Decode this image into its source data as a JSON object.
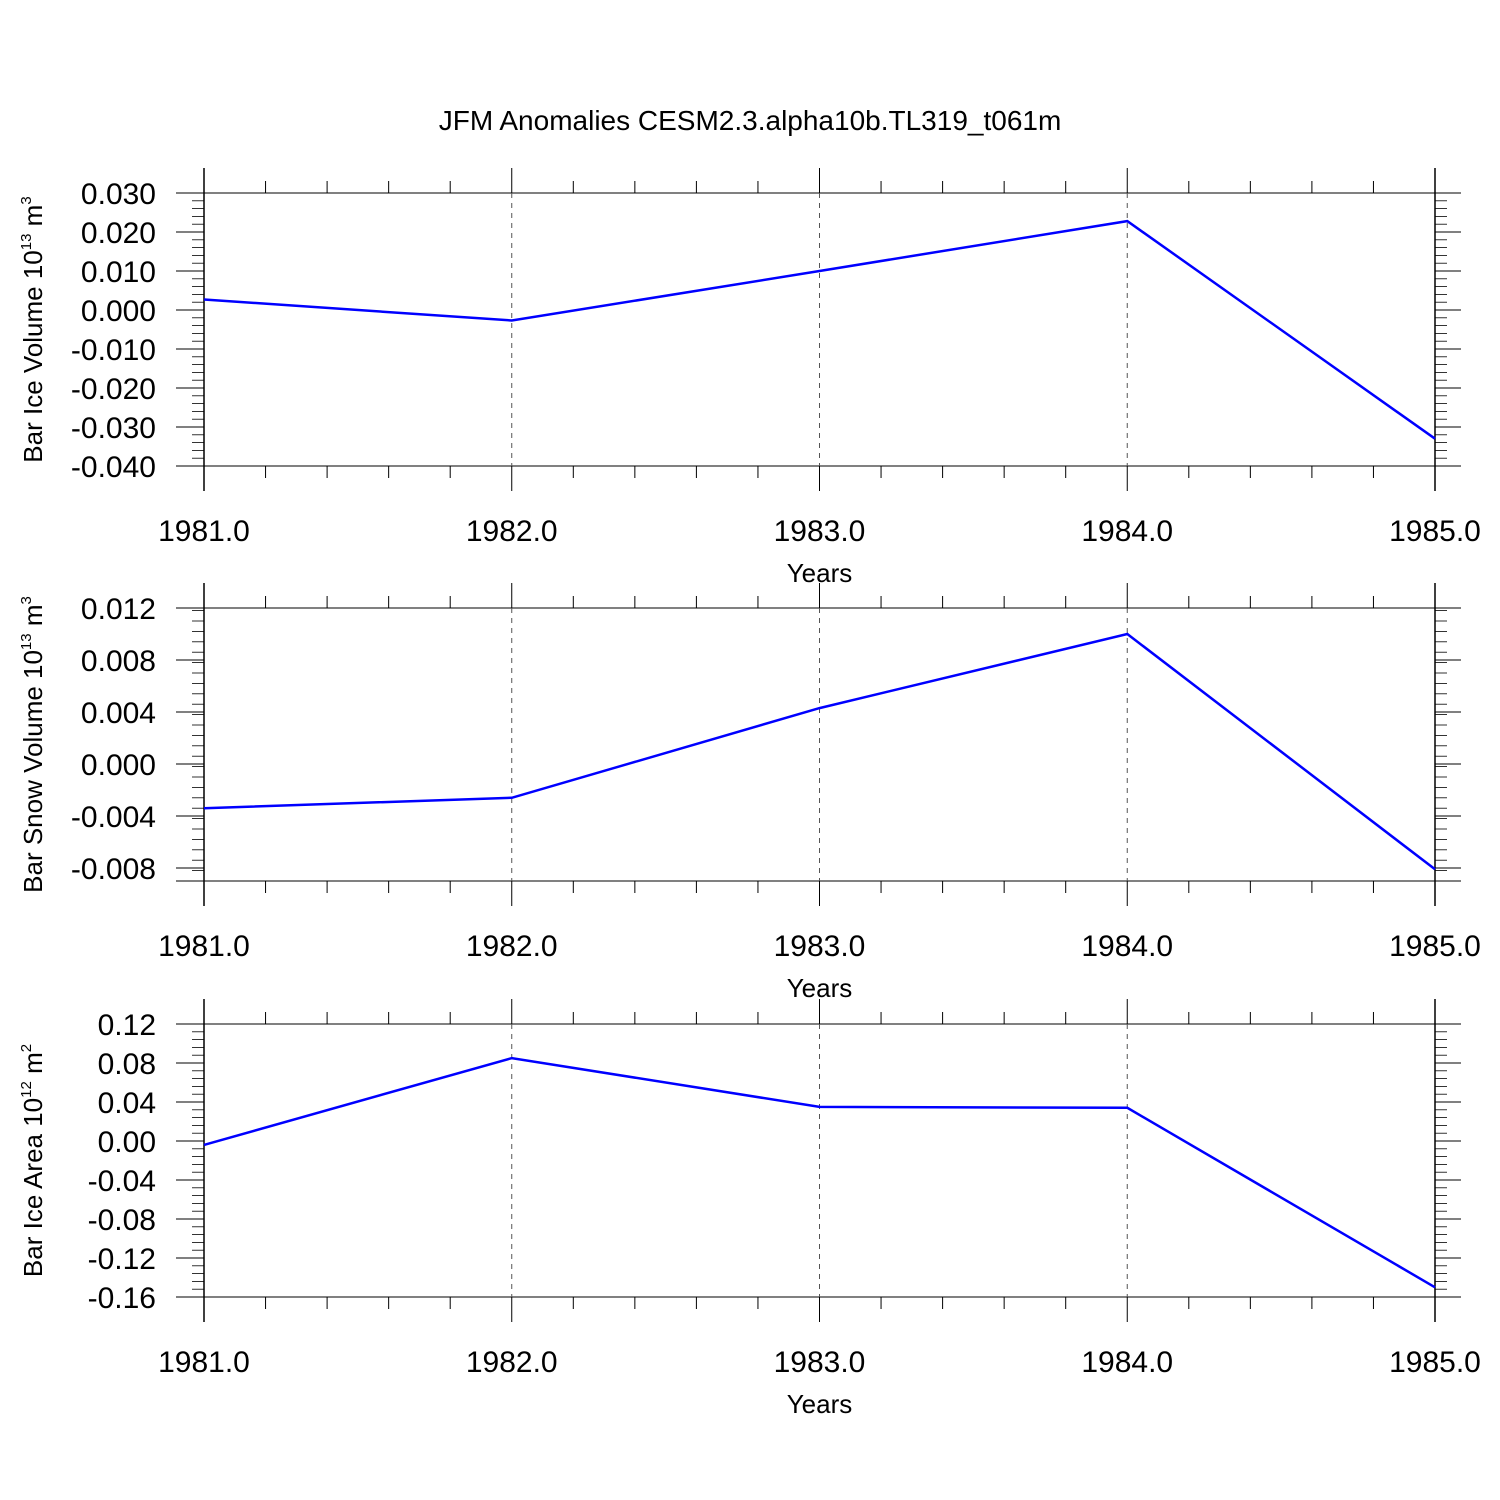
{
  "figure_title": "JFM Anomalies CESM2.3.alpha10b.TL319_t061m",
  "series_color": "#0000ff",
  "chart_data": [
    {
      "type": "line",
      "xlabel": "Years",
      "ylabel_main": "Bar Ice Volume 10",
      "ylabel_exp": "13",
      "ylabel_unit": " m",
      "ylabel_unit_exp": "3",
      "x": [
        1981,
        1982,
        1983,
        1984,
        1985
      ],
      "y": [
        0.0027,
        -0.0027,
        0.01,
        0.0228,
        -0.033
      ],
      "xlim": [
        1981,
        1985
      ],
      "ylim": [
        -0.04,
        0.03
      ],
      "xticks": [
        1981,
        1982,
        1983,
        1984,
        1985
      ],
      "xtick_labels": [
        "1981.0",
        "1982.0",
        "1983.0",
        "1984.0",
        "1985.0"
      ],
      "yticks": [
        0.03,
        0.02,
        0.01,
        0.0,
        -0.01,
        -0.02,
        -0.03,
        -0.04
      ],
      "ytick_labels": [
        "0.030",
        "0.020",
        "0.010",
        "0.000",
        "-0.010",
        "-0.020",
        "-0.030",
        "-0.040"
      ],
      "grid": "vertical dashed at major x ticks"
    },
    {
      "type": "line",
      "xlabel": "Years",
      "ylabel_main": "Bar Snow Volume 10",
      "ylabel_exp": "13",
      "ylabel_unit": " m",
      "ylabel_unit_exp": "3",
      "x": [
        1981,
        1982,
        1983,
        1984,
        1985
      ],
      "y": [
        -0.0034,
        -0.0026,
        0.0043,
        0.01,
        -0.0081
      ],
      "xlim": [
        1981,
        1985
      ],
      "ylim": [
        -0.009,
        0.012
      ],
      "xticks": [
        1981,
        1982,
        1983,
        1984,
        1985
      ],
      "xtick_labels": [
        "1981.0",
        "1982.0",
        "1983.0",
        "1984.0",
        "1985.0"
      ],
      "yticks": [
        0.012,
        0.008,
        0.004,
        0.0,
        -0.004,
        -0.008
      ],
      "ytick_labels": [
        "0.012",
        "0.008",
        "0.004",
        "0.000",
        "-0.004",
        "-0.008"
      ],
      "grid": "vertical dashed at major x ticks"
    },
    {
      "type": "line",
      "xlabel": "Years",
      "ylabel_main": "Bar Ice Area 10",
      "ylabel_exp": "12",
      "ylabel_unit": " m",
      "ylabel_unit_exp": "2",
      "x": [
        1981,
        1982,
        1983,
        1984,
        1985
      ],
      "y": [
        -0.004,
        0.085,
        0.035,
        0.034,
        -0.15
      ],
      "xlim": [
        1981,
        1985
      ],
      "ylim": [
        -0.16,
        0.12
      ],
      "xticks": [
        1981,
        1982,
        1983,
        1984,
        1985
      ],
      "xtick_labels": [
        "1981.0",
        "1982.0",
        "1983.0",
        "1984.0",
        "1985.0"
      ],
      "yticks": [
        0.12,
        0.08,
        0.04,
        0.0,
        -0.04,
        -0.08,
        -0.12,
        -0.16
      ],
      "ytick_labels": [
        "0.12",
        "0.08",
        "0.04",
        "0.00",
        "-0.04",
        "-0.08",
        "-0.12",
        "-0.16"
      ],
      "grid": "vertical dashed at major x ticks"
    }
  ]
}
